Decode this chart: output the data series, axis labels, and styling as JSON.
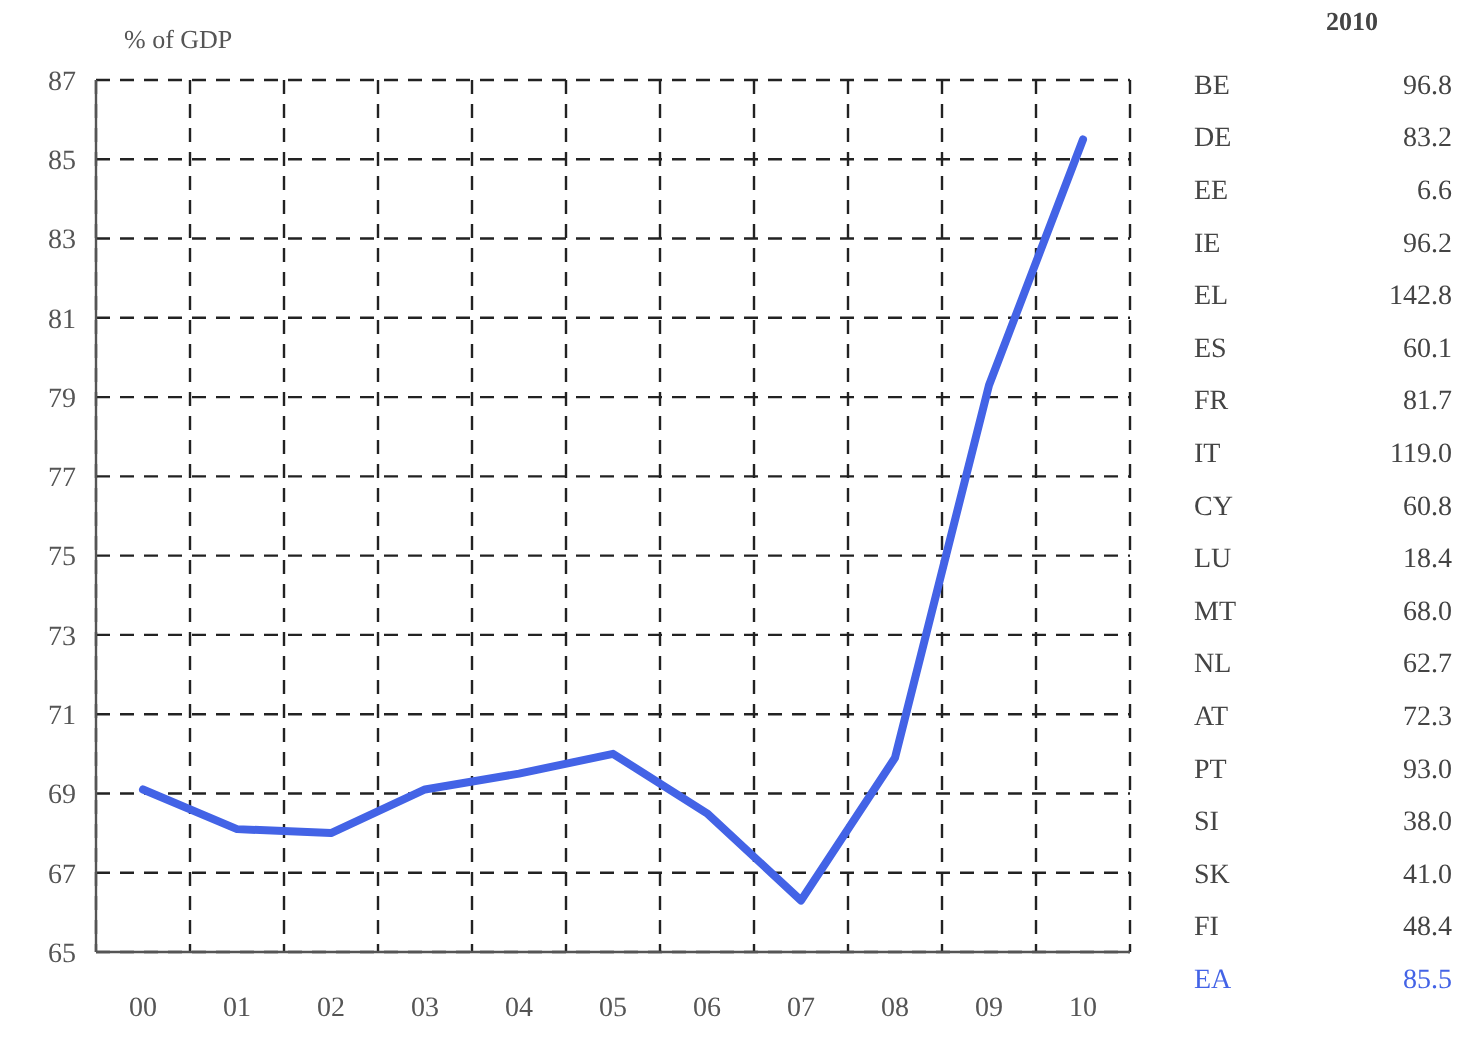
{
  "chart_data": [
    {
      "type": "line",
      "ylabel": "% of GDP",
      "categories": [
        "00",
        "01",
        "02",
        "03",
        "04",
        "05",
        "06",
        "07",
        "08",
        "09",
        "10"
      ],
      "series": [
        {
          "color": "#4363e6",
          "values": [
            69.1,
            68.1,
            68.0,
            69.1,
            69.5,
            70.0,
            68.5,
            66.3,
            69.9,
            79.3,
            85.5
          ]
        }
      ],
      "ylim": [
        65,
        87
      ],
      "yticks": [
        65,
        67,
        69,
        71,
        73,
        75,
        77,
        79,
        81,
        83,
        85,
        87
      ],
      "grid": true,
      "marker": "none",
      "line_style": "solid"
    },
    {
      "type": "other",
      "title": "2010",
      "categories": [
        "BE",
        "DE",
        "EE",
        "IE",
        "EL",
        "ES",
        "FR",
        "IT",
        "CY",
        "LU",
        "MT",
        "NL",
        "AT",
        "PT",
        "SI",
        "SK",
        "FI",
        "EA"
      ],
      "colors": [
        "#444444",
        "#444444",
        "#444444",
        "#444444",
        "#444444",
        "#444444",
        "#444444",
        "#444444",
        "#444444",
        "#444444",
        "#444444",
        "#444444",
        "#444444",
        "#444444",
        "#444444",
        "#444444",
        "#444444",
        "#4363e6"
      ],
      "value_labels": [
        "96.8",
        "83.2",
        "6.6",
        "96.2",
        "142.8",
        "60.1",
        "81.7",
        "119.0",
        "60.8",
        "18.4",
        "68.0",
        "62.7",
        "72.3",
        "93.0",
        "38.0",
        "41.0",
        "48.4",
        "85.5"
      ]
    }
  ]
}
